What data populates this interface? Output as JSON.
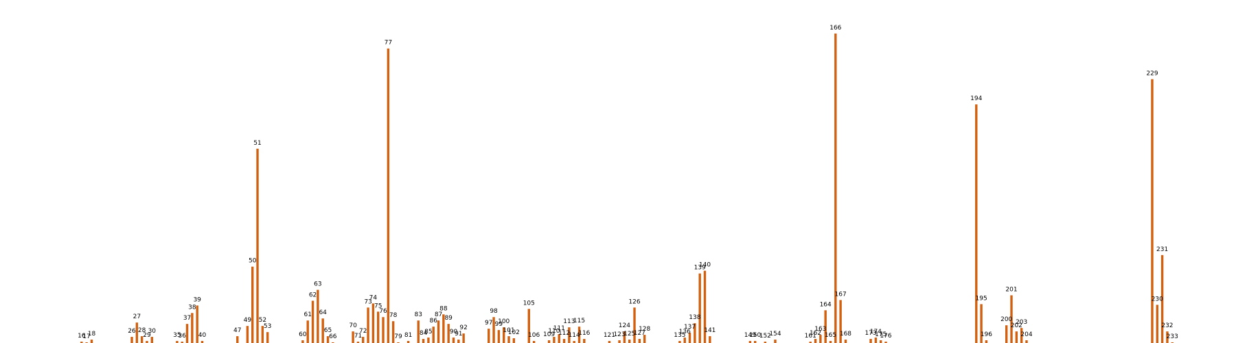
{
  "colors": {
    "bar": "#d2600f",
    "background": "#ffffff",
    "label": "#000000"
  },
  "chart_data": {
    "type": "bar",
    "title": "",
    "xlabel": "",
    "ylabel": "",
    "axes_visible": false,
    "grid": false,
    "legend": "none",
    "ylim": [
      0,
      480
    ],
    "x_range": [
      0,
      236
    ],
    "bars": [
      {
        "x": 16,
        "label": "16",
        "value": 2
      },
      {
        "x": 17,
        "label": "17",
        "value": 1
      },
      {
        "x": 18,
        "label": "18",
        "value": 5
      },
      {
        "x": 26,
        "label": "26",
        "value": 9
      },
      {
        "x": 27,
        "label": "27",
        "value": 30
      },
      {
        "x": 28,
        "label": "28",
        "value": 10
      },
      {
        "x": 29,
        "label": "29",
        "value": 3
      },
      {
        "x": 30,
        "label": "30",
        "value": 9
      },
      {
        "x": 35,
        "label": "35",
        "value": 3
      },
      {
        "x": 36,
        "label": "36",
        "value": 2
      },
      {
        "x": 37,
        "label": "37",
        "value": 28
      },
      {
        "x": 38,
        "label": "38",
        "value": 44
      },
      {
        "x": 39,
        "label": "39",
        "value": 55
      },
      {
        "x": 40,
        "label": "40",
        "value": 3
      },
      {
        "x": 47,
        "label": "47",
        "value": 10
      },
      {
        "x": 49,
        "label": "49",
        "value": 25
      },
      {
        "x": 50,
        "label": "50",
        "value": 112
      },
      {
        "x": 51,
        "label": "51",
        "value": 285
      },
      {
        "x": 52,
        "label": "52",
        "value": 25
      },
      {
        "x": 53,
        "label": "53",
        "value": 16
      },
      {
        "x": 60,
        "label": "60",
        "value": 4
      },
      {
        "x": 61,
        "label": "61",
        "value": 33
      },
      {
        "x": 62,
        "label": "62",
        "value": 62
      },
      {
        "x": 63,
        "label": "63",
        "value": 78
      },
      {
        "x": 64,
        "label": "64",
        "value": 36
      },
      {
        "x": 65,
        "label": "65",
        "value": 10
      },
      {
        "x": 66,
        "label": "66",
        "value": 1
      },
      {
        "x": 70,
        "label": "70",
        "value": 17
      },
      {
        "x": 71,
        "label": "71",
        "value": 2
      },
      {
        "x": 72,
        "label": "72",
        "value": 9
      },
      {
        "x": 73,
        "label": "73",
        "value": 52
      },
      {
        "x": 74,
        "label": "74",
        "value": 58
      },
      {
        "x": 75,
        "label": "75",
        "value": 46
      },
      {
        "x": 76,
        "label": "76",
        "value": 38
      },
      {
        "x": 77,
        "label": "77",
        "value": 432
      },
      {
        "x": 78,
        "label": "78",
        "value": 32
      },
      {
        "x": 79,
        "label": "79",
        "value": 1
      },
      {
        "x": 81,
        "label": "81",
        "value": 3
      },
      {
        "x": 83,
        "label": "83",
        "value": 33
      },
      {
        "x": 84,
        "label": "84",
        "value": 6
      },
      {
        "x": 85,
        "label": "85",
        "value": 8
      },
      {
        "x": 86,
        "label": "86",
        "value": 24
      },
      {
        "x": 87,
        "label": "87",
        "value": 33
      },
      {
        "x": 88,
        "label": "88",
        "value": 42
      },
      {
        "x": 89,
        "label": "89",
        "value": 28
      },
      {
        "x": 90,
        "label": "90",
        "value": 8
      },
      {
        "x": 91,
        "label": "91",
        "value": 5
      },
      {
        "x": 92,
        "label": "92",
        "value": 14
      },
      {
        "x": 97,
        "label": "97",
        "value": 21
      },
      {
        "x": 98,
        "label": "98",
        "value": 38
      },
      {
        "x": 99,
        "label": "99",
        "value": 19
      },
      {
        "x": 100,
        "label": "100",
        "value": 23
      },
      {
        "x": 101,
        "label": "101",
        "value": 10
      },
      {
        "x": 102,
        "label": "102",
        "value": 7
      },
      {
        "x": 105,
        "label": "105",
        "value": 50
      },
      {
        "x": 106,
        "label": "106",
        "value": 3
      },
      {
        "x": 109,
        "label": "109",
        "value": 4
      },
      {
        "x": 110,
        "label": "110",
        "value": 9
      },
      {
        "x": 111,
        "label": "111",
        "value": 13
      },
      {
        "x": 112,
        "label": "112",
        "value": 6
      },
      {
        "x": 113,
        "label": "113",
        "value": 23
      },
      {
        "x": 114,
        "label": "114",
        "value": 3
      },
      {
        "x": 115,
        "label": "115",
        "value": 24
      },
      {
        "x": 116,
        "label": "116",
        "value": 6
      },
      {
        "x": 121,
        "label": "121",
        "value": 3
      },
      {
        "x": 123,
        "label": "123",
        "value": 4
      },
      {
        "x": 124,
        "label": "124",
        "value": 17
      },
      {
        "x": 125,
        "label": "125",
        "value": 5
      },
      {
        "x": 126,
        "label": "126",
        "value": 52
      },
      {
        "x": 127,
        "label": "127",
        "value": 6
      },
      {
        "x": 128,
        "label": "128",
        "value": 12
      },
      {
        "x": 135,
        "label": "135",
        "value": 3
      },
      {
        "x": 136,
        "label": "136",
        "value": 8
      },
      {
        "x": 137,
        "label": "137",
        "value": 15
      },
      {
        "x": 138,
        "label": "138",
        "value": 29
      },
      {
        "x": 139,
        "label": "139",
        "value": 102
      },
      {
        "x": 140,
        "label": "140",
        "value": 106
      },
      {
        "x": 141,
        "label": "141",
        "value": 10
      },
      {
        "x": 149,
        "label": "149",
        "value": 3
      },
      {
        "x": 150,
        "label": "150",
        "value": 3
      },
      {
        "x": 152,
        "label": "152",
        "value": 2
      },
      {
        "x": 154,
        "label": "154",
        "value": 5
      },
      {
        "x": 161,
        "label": "161",
        "value": 2
      },
      {
        "x": 162,
        "label": "162",
        "value": 6
      },
      {
        "x": 163,
        "label": "163",
        "value": 12
      },
      {
        "x": 164,
        "label": "164",
        "value": 48
      },
      {
        "x": 165,
        "label": "165",
        "value": 3
      },
      {
        "x": 166,
        "label": "166",
        "value": 454
      },
      {
        "x": 167,
        "label": "167",
        "value": 63
      },
      {
        "x": 168,
        "label": "168",
        "value": 5
      },
      {
        "x": 173,
        "label": "173",
        "value": 6
      },
      {
        "x": 174,
        "label": "174",
        "value": 8
      },
      {
        "x": 175,
        "label": "175",
        "value": 4
      },
      {
        "x": 176,
        "label": "176",
        "value": 2
      },
      {
        "x": 194,
        "label": "194",
        "value": 350
      },
      {
        "x": 195,
        "label": "195",
        "value": 57
      },
      {
        "x": 196,
        "label": "196",
        "value": 4
      },
      {
        "x": 200,
        "label": "200",
        "value": 26
      },
      {
        "x": 201,
        "label": "201",
        "value": 70
      },
      {
        "x": 202,
        "label": "202",
        "value": 17
      },
      {
        "x": 203,
        "label": "203",
        "value": 22
      },
      {
        "x": 204,
        "label": "204",
        "value": 4
      },
      {
        "x": 229,
        "label": "229",
        "value": 387
      },
      {
        "x": 230,
        "label": "230",
        "value": 56
      },
      {
        "x": 231,
        "label": "231",
        "value": 129
      },
      {
        "x": 232,
        "label": "232",
        "value": 17
      },
      {
        "x": 233,
        "label": "233",
        "value": 1
      }
    ]
  }
}
